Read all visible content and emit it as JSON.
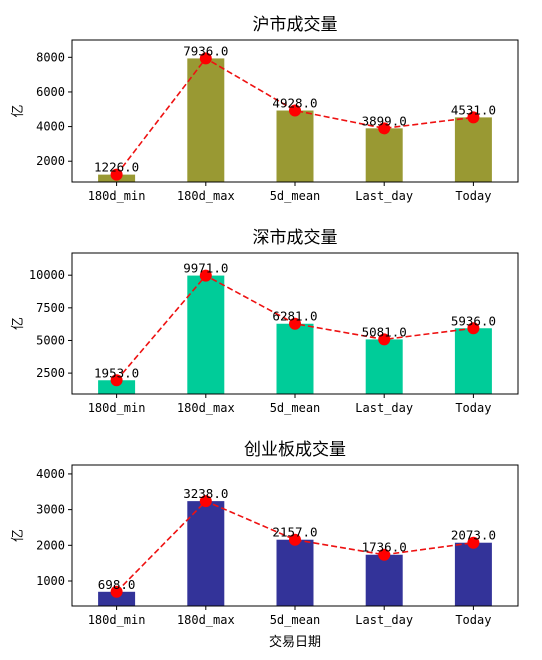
{
  "chart_data": [
    {
      "type": "bar",
      "title": "沪市成交量",
      "ylabel": "亿",
      "xlabel": "",
      "categories": [
        "180d_min",
        "180d_max",
        "5d_mean",
        "Last_day",
        "Today"
      ],
      "values": [
        1226.0,
        7936.0,
        4928.0,
        3899.0,
        4531.0
      ],
      "value_labels": [
        "1226.0",
        "7936.0",
        "4928.0",
        "3899.0",
        "4531.0"
      ],
      "ylim": [
        800,
        9000
      ],
      "yticks": [
        2000,
        4000,
        6000,
        8000
      ],
      "bar_color": "#999933",
      "line_color": "#ee1111",
      "marker_color": "#ff0000",
      "grid": false,
      "overlay": "dashed line with round markers"
    },
    {
      "type": "bar",
      "title": "深市成交量",
      "ylabel": "亿",
      "xlabel": "",
      "categories": [
        "180d_min",
        "180d_max",
        "5d_mean",
        "Last_day",
        "Today"
      ],
      "values": [
        1953.0,
        9971.0,
        6281.0,
        5081.0,
        5936.0
      ],
      "value_labels": [
        "1953.0",
        "9971.0",
        "6281.0",
        "5081.0",
        "5936.0"
      ],
      "ylim": [
        900,
        11700
      ],
      "yticks": [
        2500,
        5000,
        7500,
        10000
      ],
      "bar_color": "#00cc99",
      "line_color": "#ee1111",
      "marker_color": "#ff0000",
      "grid": false,
      "overlay": "dashed line with round markers"
    },
    {
      "type": "bar",
      "title": "创业板成交量",
      "ylabel": "亿",
      "xlabel": "交易日期",
      "categories": [
        "180d_min",
        "180d_max",
        "5d_mean",
        "Last_day",
        "Today"
      ],
      "values": [
        698.0,
        3238.0,
        2157.0,
        1736.0,
        2073.0
      ],
      "value_labels": [
        "698.0",
        "3238.0",
        "2157.0",
        "1736.0",
        "2073.0"
      ],
      "ylim": [
        300,
        4250
      ],
      "yticks": [
        1000,
        2000,
        3000,
        4000
      ],
      "bar_color": "#333399",
      "line_color": "#ee1111",
      "marker_color": "#ff0000",
      "grid": false,
      "overlay": "dashed line with round markers"
    }
  ]
}
